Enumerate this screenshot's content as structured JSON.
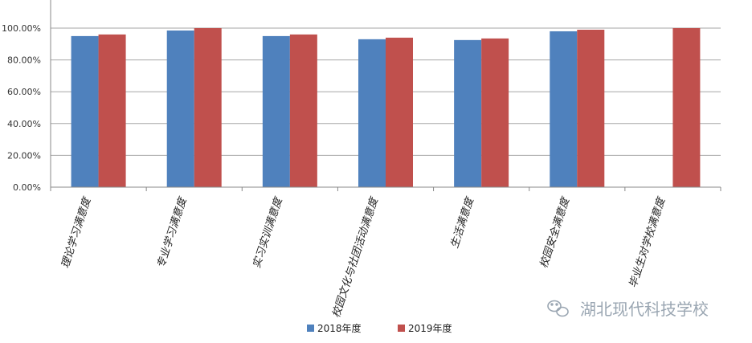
{
  "chart_data": {
    "type": "bar",
    "categories": [
      "理论学习满意度",
      "专业学习满意度",
      "实习实训满意度",
      "校园文化与社团活动满意度",
      "生活满意度",
      "校园安全满意度",
      "毕业生对学校满意度"
    ],
    "series": [
      {
        "name": "2018年度",
        "color": "#4f81bd",
        "values": [
          95.0,
          98.5,
          95.0,
          93.0,
          92.5,
          98.0,
          null
        ]
      },
      {
        "name": "2019年度",
        "color": "#c0504d",
        "values": [
          96.0,
          100.0,
          96.0,
          94.0,
          93.5,
          99.0,
          100.0
        ]
      }
    ],
    "yticks": [
      "0.00%",
      "20.00%",
      "40.00%",
      "60.00%",
      "80.00%",
      "100.00%"
    ],
    "ylim": [
      0,
      100
    ],
    "grid": true,
    "legend": "bottom",
    "xlabel": "",
    "ylabel": "",
    "title": ""
  },
  "watermark": {
    "text": "湖北现代科技学校",
    "icon": "wechat-icon"
  }
}
